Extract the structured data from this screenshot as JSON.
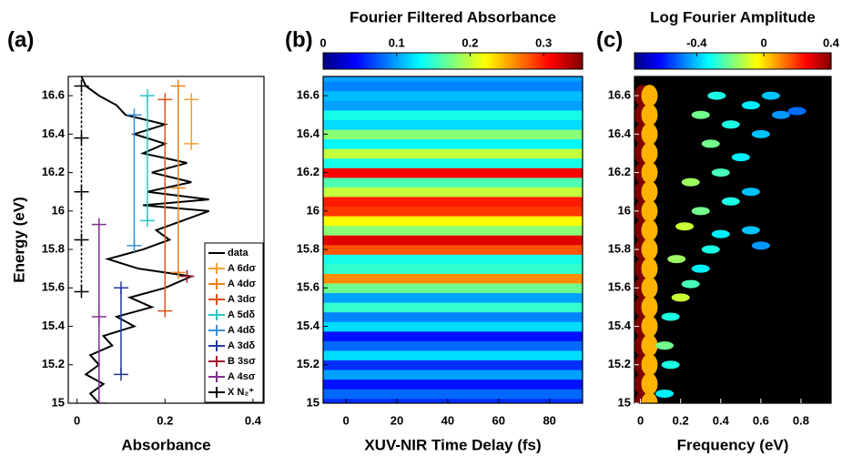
{
  "chart_data": [
    {
      "type": "line",
      "label": "(a)",
      "xlabel": "Absorbance",
      "ylabel": "Energy (eV)",
      "xlim": [
        -0.02,
        0.425
      ],
      "xticks": [
        0,
        0.2,
        0.4
      ],
      "ylim": [
        15,
        16.7
      ],
      "yticks": [
        15,
        15.2,
        15.4,
        15.6,
        15.8,
        16,
        16.2,
        16.4,
        16.6
      ],
      "legend": "lower right",
      "y": [
        15.0,
        15.05,
        15.1,
        15.15,
        15.2,
        15.25,
        15.3,
        15.35,
        15.4,
        15.45,
        15.5,
        15.55,
        15.6,
        15.66,
        15.7,
        15.75,
        15.8,
        15.85,
        15.9,
        15.95,
        16.0,
        16.03,
        16.06,
        16.1,
        16.15,
        16.2,
        16.25,
        16.3,
        16.35,
        16.4,
        16.45,
        16.5,
        16.55,
        16.6,
        16.65,
        16.7
      ],
      "series": [
        {
          "name": "data",
          "color": "#000000",
          "values": [
            0.05,
            0.03,
            0.06,
            0.02,
            0.05,
            0.03,
            0.08,
            0.06,
            0.13,
            0.09,
            0.17,
            0.12,
            0.2,
            0.26,
            0.14,
            0.07,
            0.15,
            0.21,
            0.18,
            0.24,
            0.3,
            0.15,
            0.3,
            0.16,
            0.26,
            0.17,
            0.25,
            0.15,
            0.2,
            0.13,
            0.2,
            0.11,
            0.09,
            0.05,
            0.02,
            0.01
          ]
        }
      ],
      "markers": [
        {
          "name": "A 6dσ",
          "color": "#f0a030",
          "x": 0.26,
          "energies": [
            16.35,
            16.58
          ]
        },
        {
          "name": "A 4dσ",
          "color": "#e8851a",
          "x": 0.23,
          "energies": [
            15.68,
            16.12,
            16.65
          ]
        },
        {
          "name": "A 3dσ",
          "color": "#d95319",
          "x": 0.2,
          "energies": [
            15.48,
            16.58
          ]
        },
        {
          "name": "A 5dδ",
          "color": "#2ec4c4",
          "x": 0.16,
          "energies": [
            15.95,
            16.6
          ]
        },
        {
          "name": "A 4dδ",
          "color": "#3a8fd6",
          "x": 0.13,
          "energies": [
            15.82,
            16.5
          ]
        },
        {
          "name": "A 3dδ",
          "color": "#1f3a9a",
          "x": 0.1,
          "energies": [
            15.15,
            15.6
          ]
        },
        {
          "name": "B 3sσ",
          "color": "#a2142f",
          "x": 0.25,
          "energies": [
            15.66
          ]
        },
        {
          "name": "A 4sσ",
          "color": "#7e2f8e",
          "x": 0.05,
          "energies": [
            15.0,
            15.45,
            15.93
          ]
        },
        {
          "name": "X N₂⁺",
          "color": "#000000",
          "x": 0.01,
          "linestyle": "dashed",
          "energies": [
            15.58,
            15.85,
            16.1,
            16.38,
            16.65
          ]
        }
      ]
    },
    {
      "type": "heatmap",
      "label": "(b)",
      "title": "Fourier Filtered Absorbance",
      "xlabel": "XUV-NIR Time Delay (fs)",
      "colormap": "jet",
      "clim": [
        0,
        0.353
      ],
      "cticks": [
        0,
        0.1,
        0.2,
        0.3
      ],
      "xlim": [
        -9,
        93
      ],
      "xticks": [
        0,
        20,
        40,
        60,
        80
      ],
      "ylim": [
        15,
        16.7
      ],
      "yticks": [
        15,
        15.2,
        15.4,
        15.6,
        15.8,
        16,
        16.2,
        16.4,
        16.6
      ],
      "y": [
        15.0,
        15.05,
        15.1,
        15.15,
        15.2,
        15.25,
        15.3,
        15.35,
        15.4,
        15.45,
        15.5,
        15.55,
        15.6,
        15.65,
        15.7,
        15.75,
        15.8,
        15.85,
        15.9,
        15.95,
        16.0,
        16.05,
        16.1,
        16.15,
        16.2,
        16.25,
        16.3,
        16.35,
        16.4,
        16.45,
        16.5,
        16.55,
        16.6,
        16.65,
        16.7
      ],
      "values": [
        0.06,
        0.08,
        0.05,
        0.1,
        0.06,
        0.12,
        0.08,
        0.05,
        0.12,
        0.09,
        0.15,
        0.1,
        0.17,
        0.26,
        0.15,
        0.14,
        0.28,
        0.32,
        0.18,
        0.22,
        0.29,
        0.3,
        0.2,
        0.16,
        0.31,
        0.14,
        0.2,
        0.13,
        0.18,
        0.12,
        0.14,
        0.1,
        0.11,
        0.09,
        0.1
      ]
    },
    {
      "type": "scatter-map",
      "label": "(c)",
      "title": "Log Fourier Amplitude",
      "xlabel": "Frequency (eV)",
      "colormap": "jet",
      "background": "#000000",
      "clim": [
        -0.77,
        0.4
      ],
      "cticks": [
        -0.4,
        0,
        0.4
      ],
      "xlim": [
        -0.03,
        0.95
      ],
      "xticks": [
        0,
        0.2,
        0.4,
        0.6,
        0.8
      ],
      "ylim": [
        15,
        16.7
      ],
      "yticks": [
        15,
        15.2,
        15.4,
        15.6,
        15.8,
        16,
        16.2,
        16.4,
        16.6
      ],
      "x": [
        0.01,
        0.01,
        0.01,
        0.01,
        0.01,
        0.01,
        0.01,
        0.01,
        0.01,
        0.01,
        0.01,
        0.01,
        0.01,
        0.01,
        0.01,
        0.01,
        0.01,
        0.045,
        0.045,
        0.045,
        0.045,
        0.045,
        0.045,
        0.045,
        0.045,
        0.045,
        0.045,
        0.045,
        0.045,
        0.045,
        0.045,
        0.045,
        0.045,
        0.045,
        0.12,
        0.15,
        0.2,
        0.25,
        0.3,
        0.18,
        0.35,
        0.4,
        0.22,
        0.55,
        0.6,
        0.3,
        0.45,
        0.55,
        0.25,
        0.4,
        0.5,
        0.35,
        0.6,
        0.45,
        0.3,
        0.55,
        0.7,
        0.38,
        0.65,
        0.78,
        0.15,
        0.12
      ],
      "y": [
        15.0,
        15.1,
        15.2,
        15.3,
        15.4,
        15.5,
        15.6,
        15.7,
        15.8,
        15.9,
        16.0,
        16.1,
        16.2,
        16.3,
        16.4,
        16.5,
        16.6,
        15.0,
        15.1,
        15.2,
        15.3,
        15.4,
        15.5,
        15.6,
        15.7,
        15.8,
        15.9,
        16.0,
        16.1,
        16.2,
        16.3,
        16.4,
        16.5,
        16.6,
        15.3,
        15.45,
        15.55,
        15.62,
        15.7,
        15.75,
        15.8,
        15.88,
        15.92,
        15.9,
        15.82,
        16.0,
        16.05,
        16.1,
        16.15,
        16.2,
        16.28,
        16.35,
        16.4,
        16.45,
        16.5,
        16.55,
        16.5,
        16.6,
        16.6,
        16.52,
        15.2,
        15.05
      ],
      "values": [
        0.4,
        0.4,
        0.4,
        0.4,
        0.4,
        0.4,
        0.4,
        0.4,
        0.4,
        0.4,
        0.4,
        0.4,
        0.4,
        0.4,
        0.4,
        0.4,
        0.4,
        0.05,
        0.05,
        0.05,
        0.05,
        0.05,
        0.05,
        0.05,
        0.05,
        0.05,
        0.05,
        0.05,
        0.05,
        0.05,
        0.05,
        0.05,
        0.05,
        0.05,
        -0.2,
        -0.3,
        -0.1,
        -0.25,
        -0.35,
        -0.15,
        -0.3,
        -0.35,
        -0.1,
        -0.4,
        -0.45,
        -0.2,
        -0.3,
        -0.4,
        -0.15,
        -0.25,
        -0.35,
        -0.2,
        -0.4,
        -0.3,
        -0.2,
        -0.35,
        -0.45,
        -0.3,
        -0.4,
        -0.5,
        -0.3,
        -0.35
      ]
    }
  ]
}
